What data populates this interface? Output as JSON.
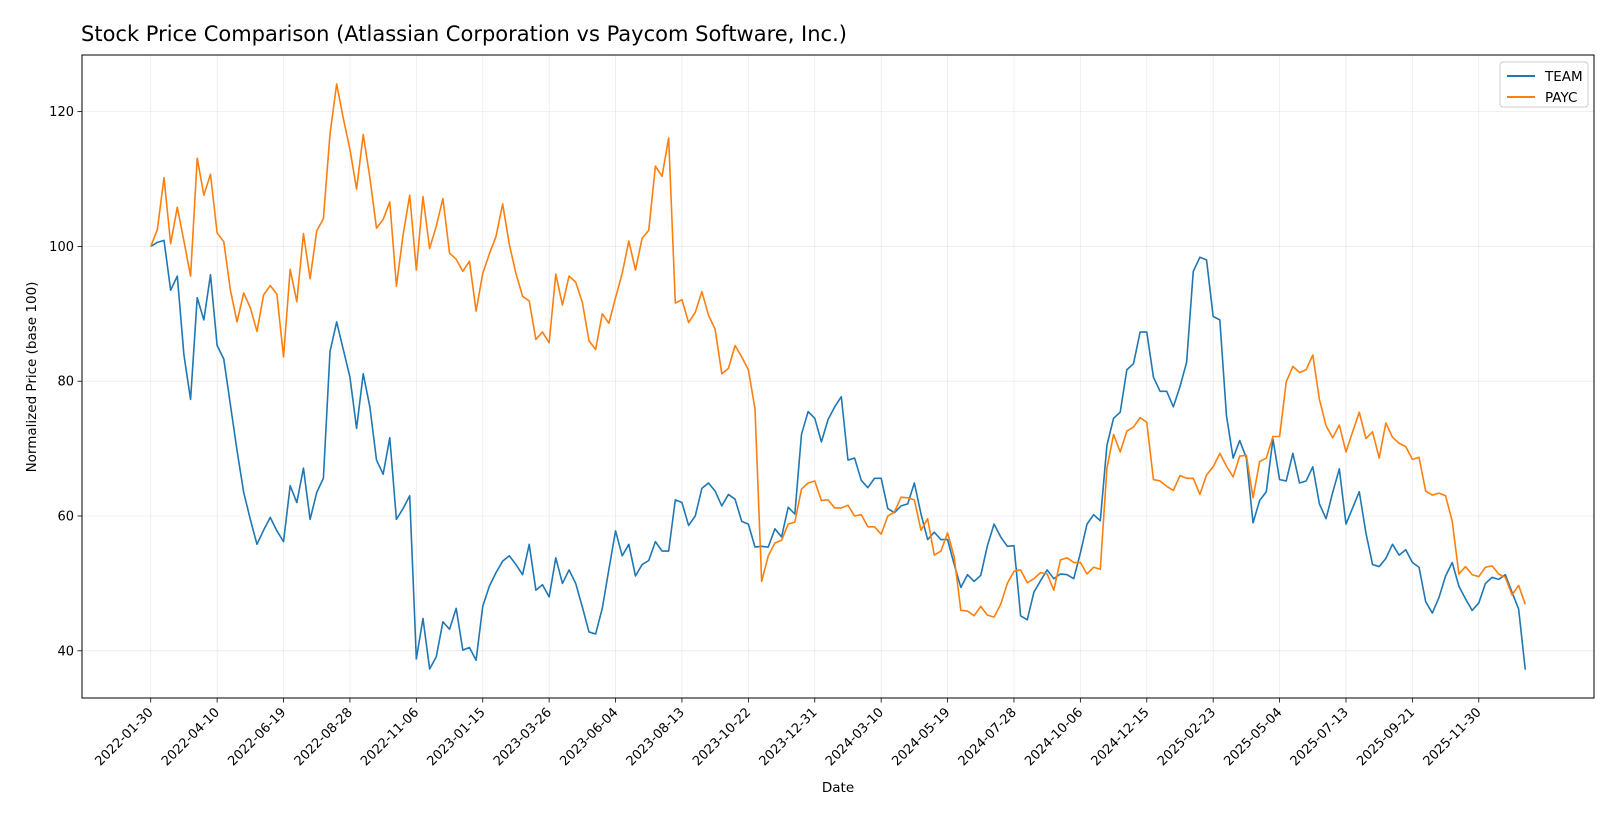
{
  "chart_data": {
    "type": "line",
    "title": "Stock Price Comparison (Atlassian Corporation vs Paycom Software, Inc.)",
    "xlabel": "Date",
    "ylabel": "Normalized Price (base 100)",
    "ylim": [
      33.0,
      128.4
    ],
    "y_ticks": [
      40,
      60,
      80,
      100,
      120
    ],
    "x_tick_labels": [
      "2022-01-30",
      "2022-04-10",
      "2022-06-19",
      "2022-08-28",
      "2022-11-06",
      "2023-01-15",
      "2023-03-26",
      "2023-06-04",
      "2023-08-13",
      "2023-10-22",
      "2023-12-31",
      "2024-03-10",
      "2024-05-19",
      "2024-07-28",
      "2024-10-06",
      "2024-12-15",
      "2025-02-23",
      "2025-05-04",
      "2025-07-13",
      "2025-09-21",
      "2025-11-30"
    ],
    "grid": true,
    "legend_position": "top-right",
    "x": [
      "2022-01-30",
      "2022-02-06",
      "2022-02-13",
      "2022-02-20",
      "2022-02-27",
      "2022-03-06",
      "2022-03-13",
      "2022-03-20",
      "2022-03-27",
      "2022-04-03",
      "2022-04-10",
      "2022-04-17",
      "2022-04-24",
      "2022-05-01",
      "2022-05-08",
      "2022-05-15",
      "2022-05-22",
      "2022-05-29",
      "2022-06-05",
      "2022-06-12",
      "2022-06-19",
      "2022-06-26",
      "2022-07-03",
      "2022-07-10",
      "2022-07-17",
      "2022-07-24",
      "2022-07-31",
      "2022-08-07",
      "2022-08-14",
      "2022-08-21",
      "2022-08-28",
      "2022-09-04",
      "2022-09-11",
      "2022-09-18",
      "2022-09-25",
      "2022-10-02",
      "2022-10-09",
      "2022-10-16",
      "2022-10-23",
      "2022-10-30",
      "2022-11-06",
      "2022-11-13",
      "2022-11-20",
      "2022-11-27",
      "2022-12-04",
      "2022-12-11",
      "2022-12-18",
      "2022-12-25",
      "2023-01-01",
      "2023-01-08",
      "2023-01-15",
      "2023-01-22",
      "2023-01-29",
      "2023-02-05",
      "2023-02-12",
      "2023-02-19",
      "2023-02-26",
      "2023-03-05",
      "2023-03-12",
      "2023-03-19",
      "2023-03-26",
      "2023-04-02",
      "2023-04-09",
      "2023-04-16",
      "2023-04-23",
      "2023-04-30",
      "2023-05-07",
      "2023-05-14",
      "2023-05-21",
      "2023-05-28",
      "2023-06-04",
      "2023-06-11",
      "2023-06-18",
      "2023-06-25",
      "2023-07-02",
      "2023-07-09",
      "2023-07-16",
      "2023-07-23",
      "2023-07-30",
      "2023-08-06",
      "2023-08-13",
      "2023-08-20",
      "2023-08-27",
      "2023-09-03",
      "2023-09-10",
      "2023-09-17",
      "2023-09-24",
      "2023-10-01",
      "2023-10-08",
      "2023-10-15",
      "2023-10-22",
      "2023-10-29",
      "2023-11-05",
      "2023-11-12",
      "2023-11-19",
      "2023-11-26",
      "2023-12-03",
      "2023-12-10",
      "2023-12-17",
      "2023-12-24",
      "2023-12-31",
      "2024-01-07",
      "2024-01-14",
      "2024-01-21",
      "2024-01-28",
      "2024-02-04",
      "2024-02-11",
      "2024-02-18",
      "2024-02-25",
      "2024-03-03",
      "2024-03-10",
      "2024-03-17",
      "2024-03-24",
      "2024-03-31",
      "2024-04-07",
      "2024-04-14",
      "2024-04-21",
      "2024-04-28",
      "2024-05-05",
      "2024-05-12",
      "2024-05-19",
      "2024-05-26",
      "2024-06-02",
      "2024-06-09",
      "2024-06-16",
      "2024-06-23",
      "2024-06-30",
      "2024-07-07",
      "2024-07-14",
      "2024-07-21",
      "2024-07-28",
      "2024-08-04",
      "2024-08-11",
      "2024-08-18",
      "2024-08-25",
      "2024-09-01",
      "2024-09-08",
      "2024-09-15",
      "2024-09-22",
      "2024-09-29",
      "2024-10-06",
      "2024-10-13",
      "2024-10-20",
      "2024-10-27",
      "2024-11-03",
      "2024-11-10",
      "2024-11-17",
      "2024-11-24",
      "2024-12-01",
      "2024-12-08",
      "2024-12-15",
      "2024-12-22",
      "2024-12-29",
      "2025-01-05",
      "2025-01-12",
      "2025-01-19",
      "2025-01-26",
      "2025-02-02",
      "2025-02-09",
      "2025-02-16",
      "2025-02-23",
      "2025-03-02",
      "2025-03-09",
      "2025-03-16",
      "2025-03-23",
      "2025-03-30",
      "2025-04-06",
      "2025-04-13",
      "2025-04-20",
      "2025-04-27",
      "2025-05-04",
      "2025-05-11",
      "2025-05-18",
      "2025-05-25",
      "2025-06-01",
      "2025-06-08",
      "2025-06-15",
      "2025-06-22",
      "2025-06-29",
      "2025-07-06",
      "2025-07-13",
      "2025-07-20",
      "2025-07-27",
      "2025-08-03",
      "2025-08-10",
      "2025-08-17",
      "2025-08-24",
      "2025-08-31",
      "2025-09-07",
      "2025-09-14",
      "2025-09-21",
      "2025-09-28",
      "2025-10-05",
      "2025-10-12",
      "2025-10-19",
      "2025-10-26",
      "2025-11-02",
      "2025-11-09",
      "2025-11-16",
      "2025-11-23",
      "2025-11-30",
      "2025-12-07",
      "2025-12-14",
      "2025-12-21",
      "2025-12-28",
      "2026-01-04",
      "2026-01-11",
      "2026-01-18"
    ],
    "series": [
      {
        "name": "TEAM",
        "color": "#1f77b4",
        "values": [
          100,
          100.6,
          100.9,
          93.5,
          95.6,
          83.9,
          77.3,
          92.4,
          89.1,
          95.8,
          85.3,
          83.3,
          76.5,
          69.7,
          63.5,
          59.5,
          55.8,
          57.9,
          59.8,
          57.8,
          56.2,
          64.5,
          62.0,
          67.1,
          59.5,
          63.5,
          65.6,
          84.4,
          88.8,
          84.7,
          80.6,
          73.0,
          81.1,
          76.2,
          68.3,
          66.2,
          71.6,
          59.5,
          61.1,
          63.0,
          38.8,
          44.8,
          37.3,
          39.1,
          44.3,
          43.2,
          46.3,
          40.1,
          40.5,
          38.6,
          46.6,
          49.6,
          51.6,
          53.3,
          54.1,
          52.8,
          51.3,
          55.8,
          49.0,
          49.8,
          48.0,
          53.8,
          50.0,
          52.0,
          50.0,
          46.5,
          42.8,
          42.5,
          46.3,
          52.1,
          57.8,
          54.1,
          55.8,
          51.1,
          52.8,
          53.4,
          56.2,
          54.8,
          54.8,
          62.4,
          62.0,
          58.6,
          60.0,
          64.1,
          64.9,
          63.7,
          61.5,
          63.2,
          62.5,
          59.2,
          58.8,
          55.4,
          55.5,
          55.4,
          58.1,
          56.9,
          61.3,
          60.3,
          72.1,
          75.5,
          74.5,
          71.0,
          74.3,
          76.2,
          77.7,
          68.3,
          68.6,
          65.3,
          64.2,
          65.6,
          65.6,
          61.1,
          60.5,
          61.5,
          61.8,
          64.9,
          60.3,
          56.5,
          57.6,
          56.5,
          56.5,
          52.8,
          49.4,
          51.3,
          50.3,
          51.2,
          55.6,
          58.8,
          56.9,
          55.5,
          55.6,
          45.2,
          44.6,
          48.7,
          50.4,
          52.0,
          50.7,
          51.4,
          51.3,
          50.7,
          54.5,
          58.8,
          60.2,
          59.3,
          70.5,
          74.5,
          75.4,
          81.7,
          82.6,
          87.3,
          87.3,
          80.6,
          78.5,
          78.5,
          76.2,
          79.2,
          82.8,
          96.3,
          98.4,
          98.0,
          89.6,
          89.1,
          74.9,
          68.6,
          71.2,
          68.6,
          59.0,
          62.3,
          63.6,
          71.4,
          65.4,
          65.2,
          69.3,
          64.9,
          65.2,
          67.3,
          61.8,
          59.6,
          63.5,
          67.0,
          58.8,
          61.2,
          63.6,
          57.5,
          52.8,
          52.5,
          53.7,
          55.8,
          54.2,
          55.0,
          53.1,
          52.4,
          47.3,
          45.6,
          47.9,
          51.1,
          53.1,
          49.6,
          47.7,
          46.0,
          47.1,
          50.0,
          50.9,
          50.6,
          51.3,
          48.7,
          46.2,
          37.2
        ]
      },
      {
        "name": "PAYC",
        "color": "#ff7f0e",
        "values": [
          100,
          102.5,
          110.2,
          100.4,
          105.8,
          100.8,
          95.6,
          113.1,
          107.6,
          110.7,
          102.0,
          100.7,
          93.5,
          88.8,
          93.1,
          90.9,
          87.4,
          92.8,
          94.2,
          92.9,
          83.6,
          96.6,
          91.8,
          101.9,
          95.2,
          102.3,
          104.1,
          116.7,
          124.1,
          119.0,
          114.4,
          108.5,
          116.6,
          110.2,
          102.7,
          104.0,
          106.6,
          94.1,
          101.7,
          107.6,
          96.5,
          107.4,
          99.7,
          103.0,
          107.1,
          99.0,
          98.1,
          96.3,
          97.8,
          90.4,
          96.0,
          98.9,
          101.5,
          106.3,
          100.3,
          96.0,
          92.6,
          91.9,
          86.2,
          87.3,
          85.7,
          95.9,
          91.3,
          95.6,
          94.7,
          91.7,
          86.0,
          84.7,
          90.0,
          88.6,
          92.4,
          96.0,
          100.8,
          96.5,
          101.2,
          102.4,
          111.9,
          110.4,
          116.1,
          91.6,
          92.1,
          88.7,
          90.2,
          93.3,
          89.8,
          87.7,
          81.1,
          81.9,
          85.3,
          83.6,
          81.7,
          75.9,
          50.3,
          54.1,
          56.0,
          56.4,
          58.8,
          59.1,
          64.0,
          64.9,
          65.2,
          62.3,
          62.4,
          61.2,
          61.2,
          61.6,
          60.0,
          60.2,
          58.4,
          58.4,
          57.3,
          60.0,
          60.6,
          62.8,
          62.7,
          62.4,
          57.9,
          59.6,
          54.2,
          54.8,
          57.5,
          53.9,
          46.0,
          45.9,
          45.2,
          46.6,
          45.3,
          45.0,
          46.9,
          50.0,
          51.8,
          52.0,
          50.1,
          50.7,
          51.6,
          51.4,
          49.0,
          53.5,
          53.8,
          53.1,
          53.1,
          51.4,
          52.4,
          52.1,
          67.1,
          72.1,
          69.5,
          72.6,
          73.2,
          74.6,
          73.9,
          65.4,
          65.2,
          64.4,
          63.8,
          66.0,
          65.6,
          65.6,
          63.2,
          66.1,
          67.3,
          69.3,
          67.4,
          65.8,
          68.9,
          69.0,
          62.7,
          68.1,
          68.6,
          71.8,
          71.8,
          79.9,
          82.2,
          81.3,
          81.7,
          83.9,
          77.3,
          73.4,
          71.6,
          73.5,
          69.5,
          72.5,
          75.4,
          71.5,
          72.5,
          68.6,
          73.8,
          71.7,
          70.8,
          70.3,
          68.4,
          68.7,
          63.7,
          63.1,
          63.4,
          63.0,
          59.2,
          51.4,
          52.5,
          51.3,
          51.0,
          52.4,
          52.6,
          51.4,
          50.9,
          48.3,
          49.7,
          46.9
        ]
      }
    ]
  }
}
